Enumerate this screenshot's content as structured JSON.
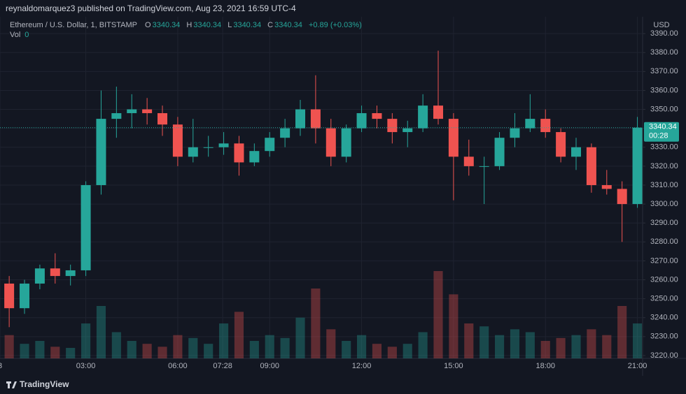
{
  "header": {
    "published": "reynaldomarquez3 published on TradingView.com, Aug 23, 2021 16:59 UTC-4"
  },
  "chart_data": {
    "type": "candlestick",
    "title": "Ethereum / U.S. Dollar, 1, BITSTAMP",
    "ohlc_labels": [
      "O",
      "H",
      "L",
      "C"
    ],
    "last_ohlc": [
      3340.34,
      3340.34,
      3340.34,
      3340.34
    ],
    "change": "+0.89 (+0.03%)",
    "volume_label": "Vol",
    "volume_value": 0,
    "currency": "USD",
    "last_price": 3340.34,
    "countdown": "00:28",
    "up_color": "#26a69a",
    "down_color": "#ef5350",
    "x": [
      0.5,
      1.0,
      1.5,
      2.0,
      2.5,
      3.0,
      3.5,
      4.0,
      4.5,
      5.0,
      5.5,
      6.0,
      6.5,
      7.0,
      7.5,
      8.0,
      8.5,
      9.0,
      9.5,
      10.0,
      10.5,
      11.0,
      11.5,
      12.0,
      12.5,
      13.0,
      13.5,
      14.0,
      14.5,
      15.0,
      15.5,
      16.0,
      16.5,
      17.0,
      17.5,
      18.0,
      18.5,
      19.0,
      19.5,
      20.0,
      20.5,
      21.0
    ],
    "open": [
      3258,
      3245,
      3258,
      3266,
      3262,
      3265,
      3310,
      3345,
      3348,
      3350,
      3348,
      3342,
      3325,
      3330,
      3330,
      3332,
      3322,
      3328,
      3335,
      3340,
      3350,
      3340,
      3325,
      3340,
      3348,
      3345,
      3338,
      3340,
      3352,
      3345,
      3325,
      3320,
      3320,
      3335,
      3340,
      3345,
      3338,
      3325,
      3330,
      3310,
      3308,
      3300
    ],
    "high": [
      3262,
      3260,
      3268,
      3274,
      3268,
      3312,
      3360,
      3362,
      3358,
      3356,
      3352,
      3346,
      3345,
      3336,
      3338,
      3336,
      3332,
      3338,
      3345,
      3355,
      3368,
      3345,
      3342,
      3352,
      3352,
      3348,
      3344,
      3358,
      3381,
      3348,
      3334,
      3325,
      3338,
      3348,
      3358,
      3350,
      3340,
      3335,
      3332,
      3318,
      3312,
      3346
    ],
    "low": [
      3235,
      3242,
      3255,
      3258,
      3257,
      3262,
      3305,
      3335,
      3340,
      3342,
      3336,
      3320,
      3322,
      3325,
      3326,
      3315,
      3320,
      3325,
      3330,
      3336,
      3332,
      3320,
      3322,
      3338,
      3340,
      3332,
      3330,
      3338,
      3342,
      3302,
      3315,
      3300,
      3318,
      3330,
      3338,
      3335,
      3322,
      3318,
      3306,
      3305,
      3280,
      3298
    ],
    "close": [
      3245,
      3258,
      3266,
      3262,
      3265,
      3310,
      3345,
      3348,
      3350,
      3348,
      3342,
      3325,
      3330,
      3330,
      3332,
      3322,
      3328,
      3335,
      3340,
      3350,
      3340,
      3325,
      3340,
      3348,
      3345,
      3338,
      3340,
      3352,
      3345,
      3325,
      3320,
      3320,
      3335,
      3340,
      3345,
      3338,
      3325,
      3330,
      3310,
      3308,
      3300,
      3340.34
    ],
    "volume": [
      40,
      25,
      30,
      20,
      18,
      60,
      90,
      45,
      30,
      25,
      20,
      40,
      35,
      25,
      60,
      80,
      30,
      40,
      35,
      70,
      120,
      50,
      30,
      40,
      25,
      20,
      25,
      45,
      150,
      110,
      60,
      55,
      40,
      50,
      45,
      30,
      35,
      40,
      50,
      40,
      90,
      60
    ],
    "xlim": [
      0.2,
      21.17
    ],
    "xticks": [
      {
        "value": 0.2,
        "label": "3"
      },
      {
        "value": 3,
        "label": "03:00"
      },
      {
        "value": 6,
        "label": "06:00"
      },
      {
        "value": 7.467,
        "label": "07:28"
      },
      {
        "value": 9,
        "label": "09:00"
      },
      {
        "value": 12,
        "label": "12:00"
      },
      {
        "value": 15,
        "label": "15:00"
      },
      {
        "value": 18,
        "label": "18:00"
      },
      {
        "value": 21,
        "label": "21:00"
      }
    ],
    "ylim": [
      3218.5,
      3398.9
    ],
    "yticks": [
      {
        "value": 3220,
        "label": "3220.00"
      },
      {
        "value": 3230,
        "label": "3230.00"
      },
      {
        "value": 3240,
        "label": "3240.00"
      },
      {
        "value": 3250,
        "label": "3250.00"
      },
      {
        "value": 3260,
        "label": "3260.00"
      },
      {
        "value": 3270,
        "label": "3270.00"
      },
      {
        "value": 3280,
        "label": "3280.00"
      },
      {
        "value": 3290,
        "label": "3290.00"
      },
      {
        "value": 3300,
        "label": "3300.00"
      },
      {
        "value": 3310,
        "label": "3310.00"
      },
      {
        "value": 3320,
        "label": "3320.00"
      },
      {
        "value": 3330,
        "label": "3330.00"
      },
      {
        "value": 3340,
        "label": "3340.00"
      },
      {
        "value": 3350,
        "label": "3350.00"
      },
      {
        "value": 3360,
        "label": "3360.00"
      },
      {
        "value": 3370,
        "label": "3370.00"
      },
      {
        "value": 3380,
        "label": "3380.00"
      },
      {
        "value": 3390,
        "label": "3390.00"
      }
    ],
    "grid": true
  },
  "footer": {
    "brand": "TradingView"
  }
}
